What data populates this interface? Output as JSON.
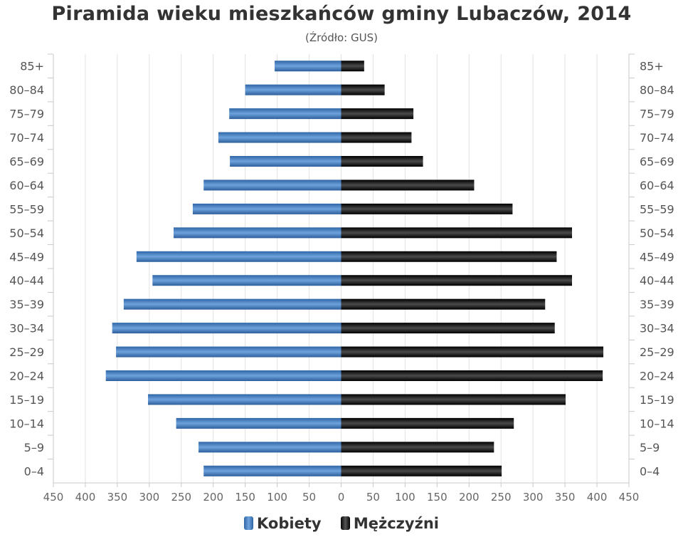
{
  "title": "Piramida wieku mieszkańców gminy Lubaczów, 2014",
  "subtitle": "(Źródło: GUS)",
  "chart_data": {
    "type": "bar",
    "orientation": "horizontal-population-pyramid",
    "title": "Piramida wieku mieszkańców gminy Lubaczów, 2014",
    "subtitle": "(Źródło: GUS)",
    "categories": [
      "85+",
      "80–84",
      "75–79",
      "70–74",
      "65–69",
      "60–64",
      "55–59",
      "50–54",
      "45–49",
      "40–44",
      "35–39",
      "30–34",
      "25–29",
      "20–24",
      "15–19",
      "10–14",
      "5–9",
      "0–4"
    ],
    "series": [
      {
        "name": "Kobiety",
        "color": "#3d78bf",
        "direction": "left",
        "values": [
          104,
          150,
          175,
          192,
          174,
          215,
          232,
          262,
          320,
          295,
          340,
          358,
          352,
          368,
          302,
          258,
          223,
          215
        ]
      },
      {
        "name": "Mężczyźni",
        "color": "#1a1a1a",
        "direction": "right",
        "values": [
          36,
          68,
          113,
          110,
          128,
          208,
          268,
          361,
          337,
          361,
          319,
          334,
          410,
          409,
          351,
          270,
          239,
          251
        ]
      }
    ],
    "x_ticks": [
      "450",
      "400",
      "350",
      "300",
      "250",
      "200",
      "150",
      "100",
      "50",
      "0",
      "50",
      "100",
      "150",
      "200",
      "250",
      "300",
      "350",
      "400",
      "450"
    ],
    "xlim": [
      -450,
      450
    ],
    "grid": true,
    "legend_position": "bottom-center"
  },
  "legend": {
    "female_label": "Kobiety",
    "male_label": "Mężczyźni"
  }
}
